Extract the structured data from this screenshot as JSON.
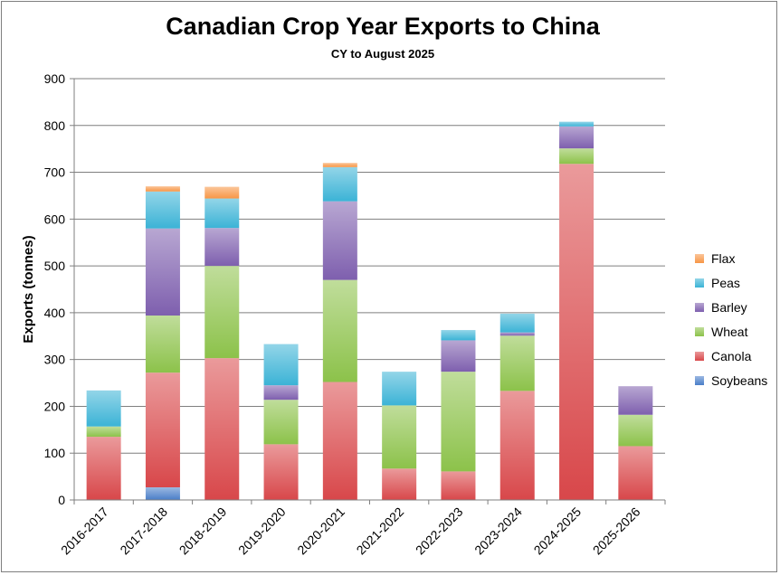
{
  "chart_data": {
    "type": "bar",
    "stacked": true,
    "title": "Canadian Crop Year Exports to China",
    "subtitle": "CY to August 2025",
    "ylabel": "Exports (tonnes)",
    "xlabel": "",
    "ylim": [
      0,
      900
    ],
    "yticks": [
      0,
      100,
      200,
      300,
      400,
      500,
      600,
      700,
      800,
      900
    ],
    "grid": true,
    "legend_position": "right",
    "categories": [
      "2016-2017",
      "2017-2018",
      "2018-2019",
      "2019-2020",
      "2020-2021",
      "2021-2022",
      "2022-2023",
      "2023-2024",
      "2024-2025",
      "2025-2026"
    ],
    "series": [
      {
        "name": "Soybeans",
        "color": "#4a7ec8",
        "values": [
          0,
          27,
          0,
          0,
          0,
          0,
          0,
          0,
          0,
          0
        ]
      },
      {
        "name": "Canola",
        "color": "#d8474a",
        "values": [
          135,
          245,
          303,
          119,
          252,
          67,
          61,
          233,
          718,
          115
        ]
      },
      {
        "name": "Wheat",
        "color": "#8cc24a",
        "values": [
          22,
          122,
          197,
          95,
          218,
          135,
          213,
          118,
          33,
          67
        ]
      },
      {
        "name": "Barley",
        "color": "#7e5fae",
        "values": [
          0,
          186,
          81,
          31,
          168,
          0,
          67,
          7,
          47,
          61
        ]
      },
      {
        "name": "Peas",
        "color": "#3bb3d6",
        "values": [
          77,
          79,
          63,
          88,
          73,
          72,
          22,
          40,
          10,
          0
        ]
      },
      {
        "name": "Flax",
        "color": "#f79646",
        "values": [
          0,
          11,
          25,
          0,
          9,
          0,
          0,
          0,
          0,
          0
        ]
      }
    ]
  }
}
